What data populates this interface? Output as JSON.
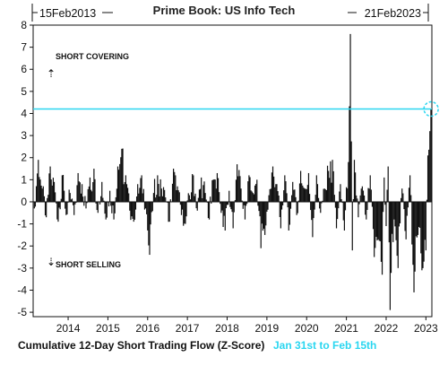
{
  "chart_data": {
    "type": "bar",
    "title": "Prime Book: US Info Tech",
    "start_label": "15Feb2013",
    "end_label": "21Feb2023",
    "ylim": [
      -5.2,
      8
    ],
    "yticks": [
      -5,
      -4,
      -3,
      -2,
      -1,
      0,
      1,
      2,
      3,
      4,
      5,
      6,
      7,
      8
    ],
    "xlim": [
      2013.12,
      2023.15
    ],
    "xticks": [
      2014,
      2015,
      2016,
      2017,
      2018,
      2019,
      2020,
      2021,
      2022,
      2023
    ],
    "reference_line": {
      "value": 4.2,
      "color": "#2ad6f0"
    },
    "annotations": {
      "up": "SHORT COVERING",
      "down": "SHORT SELLING"
    },
    "footer": {
      "label": "Cumulative 12-Day Short Trading Flow (Z-Score)",
      "highlight": "Jan 31st to Feb 15th",
      "highlight_color": "#2ad6f0"
    },
    "series": [
      {
        "values": [
          [
            2013.15,
            -0.3
          ],
          [
            2013.25,
            1.9
          ],
          [
            2013.35,
            0.6
          ],
          [
            2013.45,
            -0.7
          ],
          [
            2013.55,
            1.6
          ],
          [
            2013.65,
            0.9
          ],
          [
            2013.75,
            -0.9
          ],
          [
            2013.85,
            1.2
          ],
          [
            2013.95,
            -0.6
          ],
          [
            2014.05,
            0.4
          ],
          [
            2014.15,
            -0.6
          ],
          [
            2014.25,
            1.3
          ],
          [
            2014.35,
            0.8
          ],
          [
            2014.45,
            -0.3
          ],
          [
            2014.55,
            1.1
          ],
          [
            2014.65,
            1.5
          ],
          [
            2014.75,
            -0.5
          ],
          [
            2014.85,
            0.9
          ],
          [
            2014.95,
            -0.8
          ],
          [
            2015.05,
            0.5
          ],
          [
            2015.15,
            -0.8
          ],
          [
            2015.25,
            1.6
          ],
          [
            2015.35,
            2.4
          ],
          [
            2015.45,
            1.2
          ],
          [
            2015.55,
            -0.4
          ],
          [
            2015.65,
            -0.9
          ],
          [
            2015.75,
            0.8
          ],
          [
            2015.85,
            1.2
          ],
          [
            2015.95,
            -0.3
          ],
          [
            2016.05,
            -2.4
          ],
          [
            2016.15,
            0.4
          ],
          [
            2016.25,
            1.2
          ],
          [
            2016.35,
            0.6
          ],
          [
            2016.45,
            0.2
          ],
          [
            2016.55,
            -0.9
          ],
          [
            2016.65,
            1.5
          ],
          [
            2016.75,
            0.7
          ],
          [
            2016.85,
            -0.6
          ],
          [
            2016.95,
            -1.0
          ],
          [
            2017.05,
            0.3
          ],
          [
            2017.15,
            1.2
          ],
          [
            2017.25,
            -0.4
          ],
          [
            2017.35,
            1.1
          ],
          [
            2017.45,
            0.4
          ],
          [
            2017.55,
            -0.8
          ],
          [
            2017.65,
            1.0
          ],
          [
            2017.75,
            1.3
          ],
          [
            2017.85,
            -0.5
          ],
          [
            2017.95,
            -1.3
          ],
          [
            2018.05,
            0.5
          ],
          [
            2018.15,
            -1.2
          ],
          [
            2018.25,
            1.7
          ],
          [
            2018.35,
            0.6
          ],
          [
            2018.45,
            -0.8
          ],
          [
            2018.55,
            1.2
          ],
          [
            2018.65,
            0.4
          ],
          [
            2018.75,
            1.0
          ],
          [
            2018.85,
            -2.1
          ],
          [
            2018.95,
            -1.5
          ],
          [
            2019.05,
            0.3
          ],
          [
            2019.15,
            1.6
          ],
          [
            2019.25,
            0.8
          ],
          [
            2019.35,
            -1.2
          ],
          [
            2019.45,
            1.2
          ],
          [
            2019.55,
            -1.3
          ],
          [
            2019.65,
            0.9
          ],
          [
            2019.75,
            -0.6
          ],
          [
            2019.85,
            1.4
          ],
          [
            2019.95,
            0.6
          ],
          [
            2020.05,
            1.3
          ],
          [
            2020.15,
            -1.6
          ],
          [
            2020.25,
            1.2
          ],
          [
            2020.35,
            -0.5
          ],
          [
            2020.45,
            0.6
          ],
          [
            2020.55,
            1.4
          ],
          [
            2020.65,
            1.9
          ],
          [
            2020.75,
            -1.2
          ],
          [
            2020.85,
            0.8
          ],
          [
            2020.95,
            -1.3
          ],
          [
            2021.05,
            1.8
          ],
          [
            2021.1,
            7.6
          ],
          [
            2021.15,
            -2.2
          ],
          [
            2021.2,
            1.9
          ],
          [
            2021.3,
            -0.7
          ],
          [
            2021.4,
            0.7
          ],
          [
            2021.5,
            -0.8
          ],
          [
            2021.6,
            1.2
          ],
          [
            2021.7,
            -2.5
          ],
          [
            2021.8,
            -1.7
          ],
          [
            2021.9,
            -3.3
          ],
          [
            2021.95,
            1.1
          ],
          [
            2022.0,
            -1.1
          ],
          [
            2022.05,
            1.6
          ],
          [
            2022.1,
            -4.9
          ],
          [
            2022.2,
            -0.8
          ],
          [
            2022.3,
            -3.0
          ],
          [
            2022.4,
            0.6
          ],
          [
            2022.5,
            -1.7
          ],
          [
            2022.6,
            1.2
          ],
          [
            2022.7,
            -4.1
          ],
          [
            2022.8,
            -1.5
          ],
          [
            2022.9,
            -3.1
          ],
          [
            2023.0,
            -2.2
          ],
          [
            2023.05,
            2.1
          ],
          [
            2023.1,
            3.2
          ],
          [
            2023.13,
            4.2
          ]
        ]
      }
    ]
  }
}
